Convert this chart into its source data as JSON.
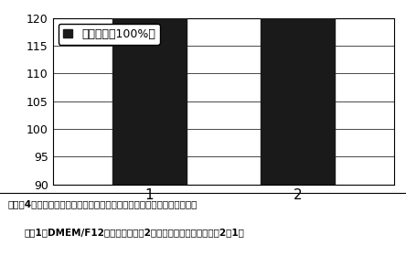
{
  "categories": [
    "1",
    "2"
  ],
  "values": [
    100,
    116
  ],
  "bar_color": "#1a1a1a",
  "ylim": [
    90,
    120
  ],
  "yticks": [
    90,
    95,
    100,
    105,
    110,
    115,
    120
  ],
  "legend_label": "细胞活性（100%）",
  "caption_line1": "实施入4：麦冬多糖与白术多糖组合物对脖带间充质干细胞增殖的促进作用",
  "caption_line2": "注：1：DMEM/F12培养基对照组；2：麦冬多糖与白术多糖组（2：1）",
  "bar_width": 0.5,
  "background_color": "#ffffff",
  "grid_color": "#000000",
  "tick_fontsize": 9,
  "legend_fontsize": 9,
  "caption_fontsize": 7.5
}
